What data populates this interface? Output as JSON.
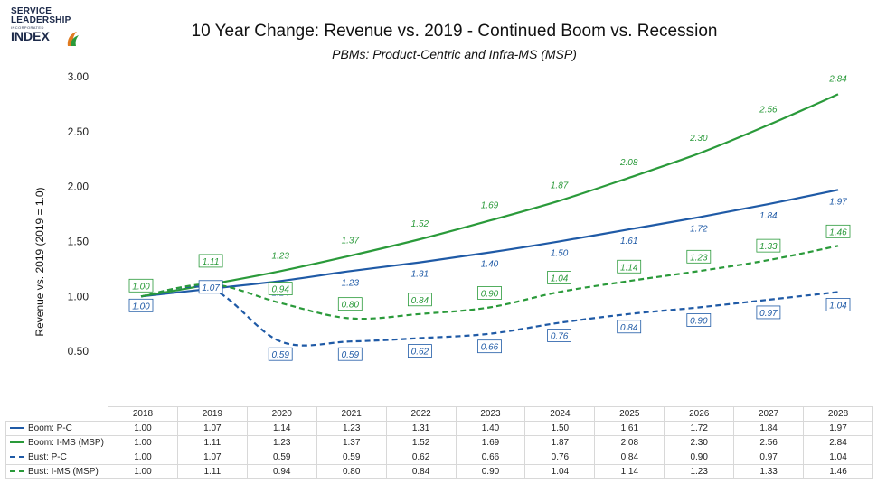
{
  "logo": {
    "line1": "SERVICE",
    "line2": "LEADERSHIP",
    "line3": "INCORPORATED",
    "line4": "INDEX"
  },
  "chart_data": {
    "type": "line",
    "title": "10 Year Change: Revenue vs. 2019 - Continued Boom vs. Recession",
    "subtitle": "PBMs: Product-Centric and Infra-MS (MSP)",
    "ylabel": "Revenue vs. 2019 (2019 = 1.0)",
    "xlabel": "",
    "ylim": [
      0,
      3.0
    ],
    "yticks": [
      "-",
      "0.50",
      "1.00",
      "1.50",
      "2.00",
      "2.50",
      "3.00"
    ],
    "x": [
      "2018",
      "2019",
      "2020",
      "2021",
      "2022",
      "2023",
      "2024",
      "2025",
      "2026",
      "2027",
      "2028"
    ],
    "legend_placement": "data table",
    "grid": false,
    "series": [
      {
        "name": "Boom: P-C",
        "color": "#1f5aa6",
        "style": "solid",
        "label_box": false,
        "values": [
          1.0,
          1.07,
          1.14,
          1.23,
          1.31,
          1.4,
          1.5,
          1.61,
          1.72,
          1.84,
          1.97
        ],
        "labels": [
          "1.00",
          "1.07",
          "1.14",
          "1.23",
          "1.31",
          "1.40",
          "1.50",
          "1.61",
          "1.72",
          "1.84",
          "1.97"
        ]
      },
      {
        "name": "Boom: I-MS (MSP)",
        "color": "#2a9a3a",
        "style": "solid",
        "label_box": false,
        "values": [
          1.0,
          1.11,
          1.23,
          1.37,
          1.52,
          1.69,
          1.87,
          2.08,
          2.3,
          2.56,
          2.84
        ],
        "labels": [
          "1.00",
          "1.11",
          "1.23",
          "1.37",
          "1.52",
          "1.69",
          "1.87",
          "2.08",
          "2.30",
          "2.56",
          "2.84"
        ]
      },
      {
        "name": "Bust: P-C",
        "color": "#1f5aa6",
        "style": "dashed",
        "label_box": true,
        "values": [
          1.0,
          1.07,
          0.59,
          0.59,
          0.62,
          0.66,
          0.76,
          0.84,
          0.9,
          0.97,
          1.04
        ],
        "labels": [
          "1.00",
          "1.07",
          "0.59",
          "0.59",
          "0.62",
          "0.66",
          "0.76",
          "0.84",
          "0.90",
          "0.97",
          "1.04"
        ]
      },
      {
        "name": "Bust: I-MS (MSP)",
        "color": "#2a9a3a",
        "style": "dashed",
        "label_box": true,
        "values": [
          1.0,
          1.11,
          0.94,
          0.8,
          0.84,
          0.9,
          1.04,
          1.14,
          1.23,
          1.33,
          1.46
        ],
        "labels": [
          "1.00",
          "1.11",
          "0.94",
          "0.80",
          "0.84",
          "0.90",
          "1.04",
          "1.14",
          "1.23",
          "1.33",
          "1.46"
        ]
      }
    ]
  }
}
